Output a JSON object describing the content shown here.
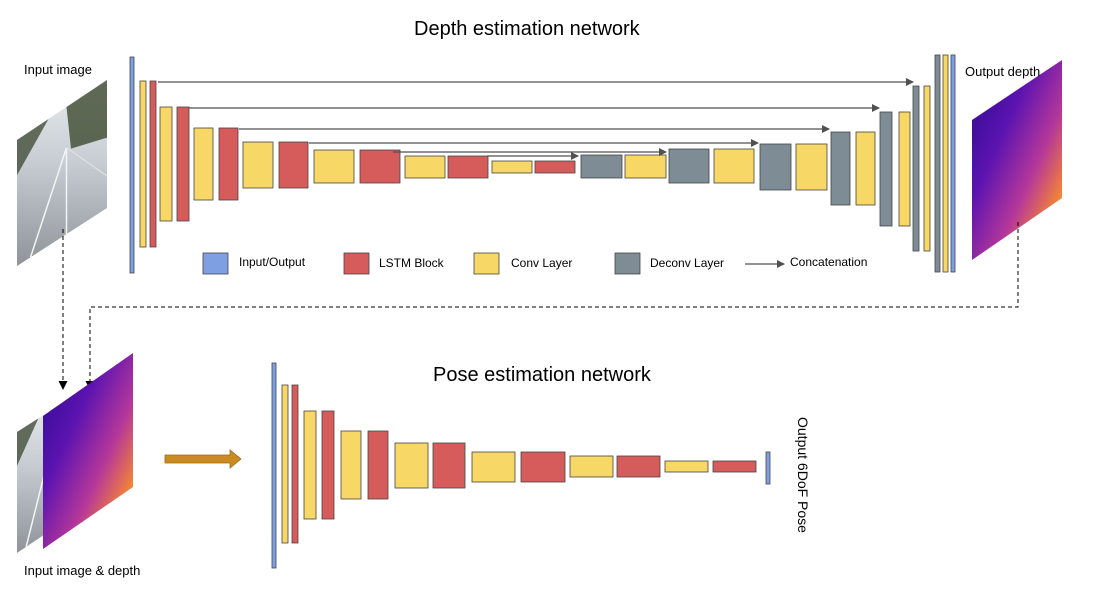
{
  "depth_network": {
    "title": "Depth estimation network",
    "input_label": "Input image",
    "output_label": "Output depth"
  },
  "pose_network": {
    "title": "Pose estimation network",
    "input_label": "Input image & depth",
    "output_label": "Output 6DoF Pose"
  },
  "legend": [
    {
      "key": "io",
      "label": "Input/Output"
    },
    {
      "key": "lstm",
      "label": "LSTM Block"
    },
    {
      "key": "conv",
      "label": "Conv Layer"
    },
    {
      "key": "deconv",
      "label": "Deconv Layer"
    },
    {
      "key": "concat",
      "label": "Concatenation"
    }
  ],
  "colors": {
    "io": "#7f9fe3",
    "lstm": "#d65b5b",
    "conv": "#f7d766",
    "deconv": "#7e8c95",
    "arrow": "#505050",
    "feed_arrow": "#c98b22"
  },
  "icons": {
    "input_image": "road-photo",
    "output_depth": "depth-map",
    "stacked_input": "image-and-depth-stack"
  }
}
